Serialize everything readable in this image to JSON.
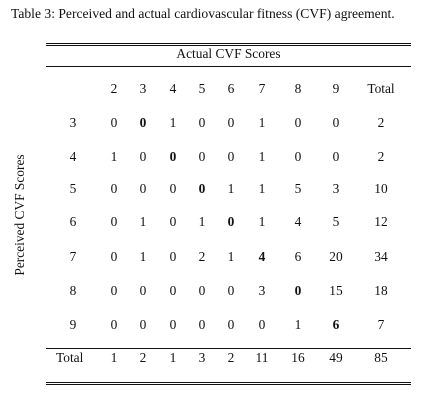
{
  "caption": "Table 3: Perceived and actual cardiovascular fitness (CVF) agreement.",
  "column_group_header": "Actual CVF Scores",
  "row_axis_label": "Perceived CVF Scores",
  "columns": [
    "2",
    "3",
    "4",
    "5",
    "6",
    "7",
    "8",
    "9",
    "Total"
  ],
  "rows": [
    {
      "label": "3",
      "cells": [
        "0",
        "0",
        "1",
        "0",
        "0",
        "1",
        "0",
        "0",
        "2"
      ],
      "bold_index": 1
    },
    {
      "label": "4",
      "cells": [
        "1",
        "0",
        "0",
        "0",
        "0",
        "1",
        "0",
        "0",
        "2"
      ],
      "bold_index": 2
    },
    {
      "label": "5",
      "cells": [
        "0",
        "0",
        "0",
        "0",
        "1",
        "1",
        "5",
        "3",
        "10"
      ],
      "bold_index": 3
    },
    {
      "label": "6",
      "cells": [
        "0",
        "1",
        "0",
        "1",
        "0",
        "1",
        "4",
        "5",
        "12"
      ],
      "bold_index": 4
    },
    {
      "label": "7",
      "cells": [
        "0",
        "1",
        "0",
        "2",
        "1",
        "4",
        "6",
        "20",
        "34"
      ],
      "bold_index": 5
    },
    {
      "label": "8",
      "cells": [
        "0",
        "0",
        "0",
        "0",
        "0",
        "3",
        "0",
        "15",
        "18"
      ],
      "bold_index": 6
    },
    {
      "label": "9",
      "cells": [
        "0",
        "0",
        "0",
        "0",
        "0",
        "0",
        "1",
        "6",
        "7"
      ],
      "bold_index": 7
    }
  ],
  "totals": {
    "label": "Total",
    "cells": [
      "1",
      "2",
      "1",
      "3",
      "2",
      "11",
      "16",
      "49",
      "85"
    ]
  }
}
